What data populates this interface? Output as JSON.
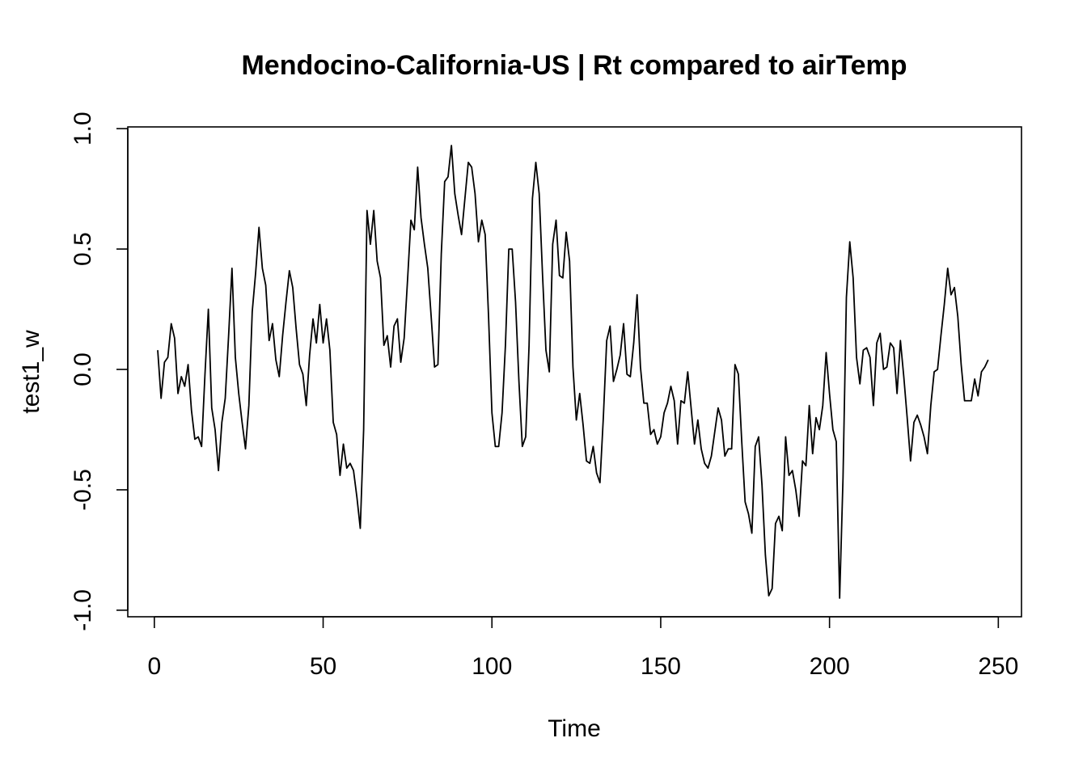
{
  "chart_data": {
    "type": "line",
    "title": "Mendocino-California-US | Rt compared to airTemp",
    "xlabel": "Time",
    "ylabel": "test1_w",
    "xlim": [
      1,
      248
    ],
    "ylim": [
      -0.95,
      0.93
    ],
    "x_ticks": [
      0,
      50,
      100,
      150,
      200,
      250
    ],
    "y_ticks": [
      -1.0,
      -0.5,
      0.0,
      0.5,
      1.0
    ],
    "x_tick_labels": [
      "0",
      "50",
      "100",
      "150",
      "200",
      "250"
    ],
    "y_tick_labels": [
      "-1.0",
      "-0.5",
      "0.0",
      "0.5",
      "1.0"
    ],
    "grid": false,
    "x_start": 1,
    "series": [
      {
        "values": [
          0.08,
          -0.12,
          0.03,
          0.05,
          0.19,
          0.13,
          -0.1,
          -0.03,
          -0.07,
          0.02,
          -0.17,
          -0.29,
          -0.28,
          -0.32,
          -0.02,
          0.25,
          -0.16,
          -0.25,
          -0.42,
          -0.22,
          -0.12,
          0.14,
          0.42,
          0.05,
          -0.1,
          -0.22,
          -0.33,
          -0.15,
          0.24,
          0.4,
          0.59,
          0.42,
          0.35,
          0.12,
          0.19,
          0.04,
          -0.03,
          0.14,
          0.28,
          0.41,
          0.34,
          0.17,
          0.02,
          -0.02,
          -0.15,
          0.06,
          0.21,
          0.11,
          0.27,
          0.11,
          0.21,
          0.08,
          -0.22,
          -0.27,
          -0.44,
          -0.31,
          -0.41,
          -0.39,
          -0.42,
          -0.53,
          -0.66,
          -0.25,
          0.66,
          0.52,
          0.66,
          0.45,
          0.38,
          0.1,
          0.14,
          0.01,
          0.18,
          0.21,
          0.03,
          0.13,
          0.37,
          0.62,
          0.58,
          0.84,
          0.63,
          0.52,
          0.42,
          0.22,
          0.01,
          0.02,
          0.48,
          0.78,
          0.8,
          0.93,
          0.73,
          0.64,
          0.56,
          0.71,
          0.86,
          0.84,
          0.73,
          0.53,
          0.62,
          0.56,
          0.22,
          -0.18,
          -0.32,
          -0.32,
          -0.18,
          0.1,
          0.5,
          0.5,
          0.28,
          -0.05,
          -0.32,
          -0.28,
          0.1,
          0.71,
          0.86,
          0.73,
          0.39,
          0.08,
          -0.01,
          0.52,
          0.62,
          0.39,
          0.38,
          0.57,
          0.45,
          0.01,
          -0.21,
          -0.1,
          -0.23,
          -0.38,
          -0.39,
          -0.32,
          -0.43,
          -0.47,
          -0.2,
          0.12,
          0.18,
          -0.05,
          0.0,
          0.06,
          0.19,
          -0.02,
          -0.03,
          0.11,
          0.31,
          0.01,
          -0.14,
          -0.14,
          -0.27,
          -0.25,
          -0.31,
          -0.28,
          -0.18,
          -0.14,
          -0.07,
          -0.13,
          -0.31,
          -0.13,
          -0.14,
          -0.01,
          -0.16,
          -0.31,
          -0.21,
          -0.33,
          -0.39,
          -0.41,
          -0.36,
          -0.26,
          -0.16,
          -0.21,
          -0.36,
          -0.33,
          -0.33,
          0.02,
          -0.02,
          -0.3,
          -0.55,
          -0.6,
          -0.68,
          -0.32,
          -0.28,
          -0.48,
          -0.77,
          -0.94,
          -0.91,
          -0.64,
          -0.61,
          -0.67,
          -0.28,
          -0.44,
          -0.42,
          -0.5,
          -0.61,
          -0.38,
          -0.4,
          -0.15,
          -0.35,
          -0.2,
          -0.25,
          -0.15,
          0.07,
          -0.1,
          -0.25,
          -0.3,
          -0.95,
          -0.45,
          0.3,
          0.53,
          0.38,
          0.05,
          -0.06,
          0.08,
          0.09,
          0.05,
          -0.15,
          0.11,
          0.15,
          0.0,
          0.01,
          0.11,
          0.09,
          -0.1,
          0.12,
          -0.03,
          -0.2,
          -0.38,
          -0.22,
          -0.19,
          -0.23,
          -0.28,
          -0.35,
          -0.15,
          -0.01,
          0.0,
          0.14,
          0.27,
          0.42,
          0.31,
          0.34,
          0.22,
          0.02,
          -0.13,
          -0.13,
          -0.13,
          -0.04,
          -0.11,
          -0.01,
          0.01,
          0.04
        ]
      }
    ]
  }
}
